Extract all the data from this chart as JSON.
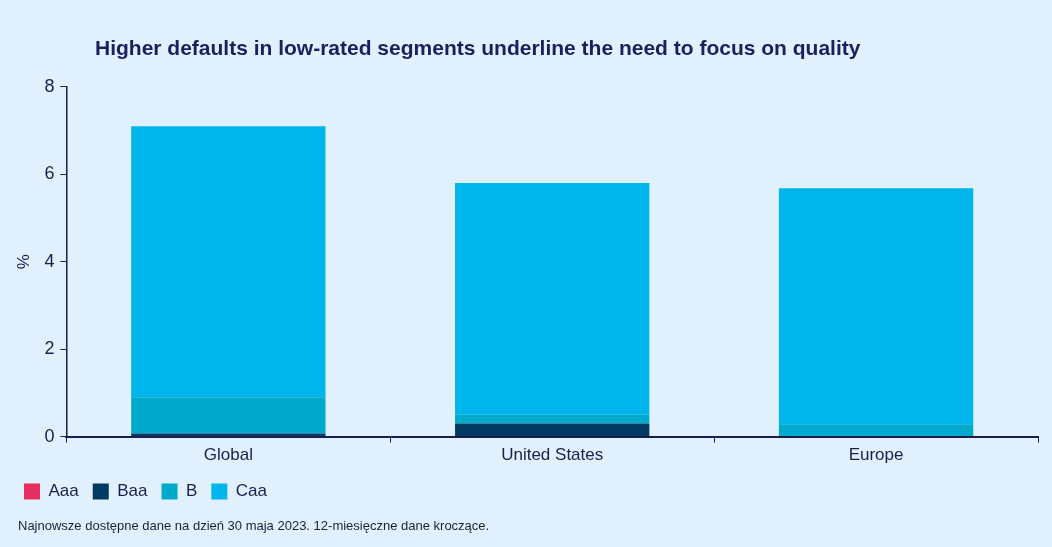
{
  "chart_data": {
    "type": "bar",
    "title": "Higher defaults in low-rated segments underline the need to focus on quality",
    "ylabel": "%",
    "categories": [
      "Global",
      "United States",
      "Europe"
    ],
    "stacked": true,
    "series": [
      {
        "name": "Aaa",
        "color": "#e5305f",
        "values": [
          0,
          0,
          0
        ]
      },
      {
        "name": "Baa",
        "color": "#003a62",
        "values": [
          0.07,
          0.3,
          null
        ]
      },
      {
        "name": "B",
        "color": "#00aacd",
        "values": [
          0.83,
          0.2,
          0.28
        ]
      },
      {
        "name": "Caa",
        "color": "#00b4ec",
        "values": [
          6.2,
          5.3,
          5.4
        ]
      }
    ],
    "ylim": [
      0,
      8
    ],
    "yticks": [
      0,
      2,
      4,
      6,
      8
    ],
    "grid": false,
    "legend": "bottom left",
    "annotations": [
      "Najnowsze dostępne dane na dzień 30 maja 2023. 12-miesięczne dane kroczące."
    ]
  }
}
